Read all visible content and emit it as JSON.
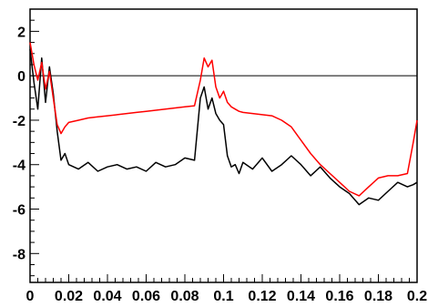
{
  "chart_data": {
    "type": "line",
    "title": "",
    "xlabel": "",
    "ylabel": "",
    "xlim": [
      0,
      0.2
    ],
    "ylim": [
      -9.3,
      3.0
    ],
    "grid": false,
    "legend": "none",
    "x_tick_labels": [
      "0",
      "0.02",
      "0.04",
      "0.06",
      "0.08",
      "0.1",
      "0.12",
      "0.14",
      "0.16",
      "0.18",
      "0.2"
    ],
    "x_tick_values": [
      0,
      0.02,
      0.04,
      0.06,
      0.08,
      0.1,
      0.12,
      0.14,
      0.16,
      0.18,
      0.2
    ],
    "y_tick_labels": [
      "2",
      "0",
      "-2",
      "-4",
      "-6",
      "-8"
    ],
    "y_tick_values": [
      2,
      0,
      -2,
      -4,
      -6,
      -8
    ],
    "reference_line_y": 0,
    "series": [
      {
        "color": "#000000",
        "x": [
          0.0,
          0.002,
          0.004,
          0.006,
          0.008,
          0.01,
          0.012,
          0.014,
          0.016,
          0.018,
          0.02,
          0.025,
          0.03,
          0.035,
          0.04,
          0.045,
          0.05,
          0.055,
          0.06,
          0.065,
          0.07,
          0.075,
          0.08,
          0.085,
          0.088,
          0.09,
          0.092,
          0.094,
          0.096,
          0.098,
          0.1,
          0.102,
          0.104,
          0.106,
          0.108,
          0.11,
          0.115,
          0.12,
          0.125,
          0.13,
          0.135,
          0.14,
          0.145,
          0.15,
          0.155,
          0.16,
          0.165,
          0.17,
          0.175,
          0.18,
          0.185,
          0.19,
          0.195,
          0.198,
          0.2
        ],
        "y": [
          1.2,
          -0.3,
          -1.5,
          0.8,
          -1.2,
          0.4,
          -0.8,
          -2.5,
          -3.8,
          -3.5,
          -4.0,
          -4.2,
          -3.9,
          -4.3,
          -4.1,
          -4.0,
          -4.2,
          -4.1,
          -4.3,
          -3.9,
          -4.1,
          -4.0,
          -3.7,
          -3.8,
          -1.0,
          -0.5,
          -1.5,
          -1.0,
          -1.7,
          -2.0,
          -2.2,
          -3.6,
          -4.1,
          -4.0,
          -4.4,
          -3.9,
          -4.2,
          -3.7,
          -4.3,
          -4.0,
          -3.6,
          -4.0,
          -4.5,
          -4.1,
          -4.6,
          -5.0,
          -5.3,
          -5.8,
          -5.5,
          -5.6,
          -5.2,
          -4.8,
          -5.0,
          -4.9,
          -4.8
        ]
      },
      {
        "color": "#ff0000",
        "x": [
          0.0,
          0.002,
          0.004,
          0.006,
          0.008,
          0.01,
          0.012,
          0.014,
          0.016,
          0.018,
          0.02,
          0.025,
          0.03,
          0.035,
          0.04,
          0.045,
          0.05,
          0.055,
          0.06,
          0.065,
          0.07,
          0.075,
          0.08,
          0.085,
          0.088,
          0.09,
          0.092,
          0.094,
          0.096,
          0.098,
          0.1,
          0.102,
          0.104,
          0.106,
          0.108,
          0.11,
          0.115,
          0.12,
          0.125,
          0.13,
          0.135,
          0.14,
          0.145,
          0.15,
          0.155,
          0.16,
          0.165,
          0.17,
          0.175,
          0.18,
          0.185,
          0.19,
          0.195,
          0.198,
          0.2
        ],
        "y": [
          1.5,
          0.5,
          -0.2,
          0.6,
          -0.6,
          0.2,
          -1.0,
          -2.2,
          -2.6,
          -2.3,
          -2.1,
          -2.0,
          -1.9,
          -1.85,
          -1.8,
          -1.75,
          -1.7,
          -1.65,
          -1.6,
          -1.55,
          -1.5,
          -1.45,
          -1.4,
          -1.35,
          -0.2,
          0.8,
          0.4,
          0.7,
          -0.5,
          -1.0,
          -0.7,
          -1.2,
          -1.4,
          -1.5,
          -1.6,
          -1.65,
          -1.7,
          -1.75,
          -1.8,
          -2.0,
          -2.3,
          -2.9,
          -3.5,
          -4.0,
          -4.4,
          -4.8,
          -5.2,
          -5.4,
          -5.0,
          -4.6,
          -4.5,
          -4.5,
          -4.4,
          -3.0,
          -2.0
        ]
      }
    ]
  }
}
